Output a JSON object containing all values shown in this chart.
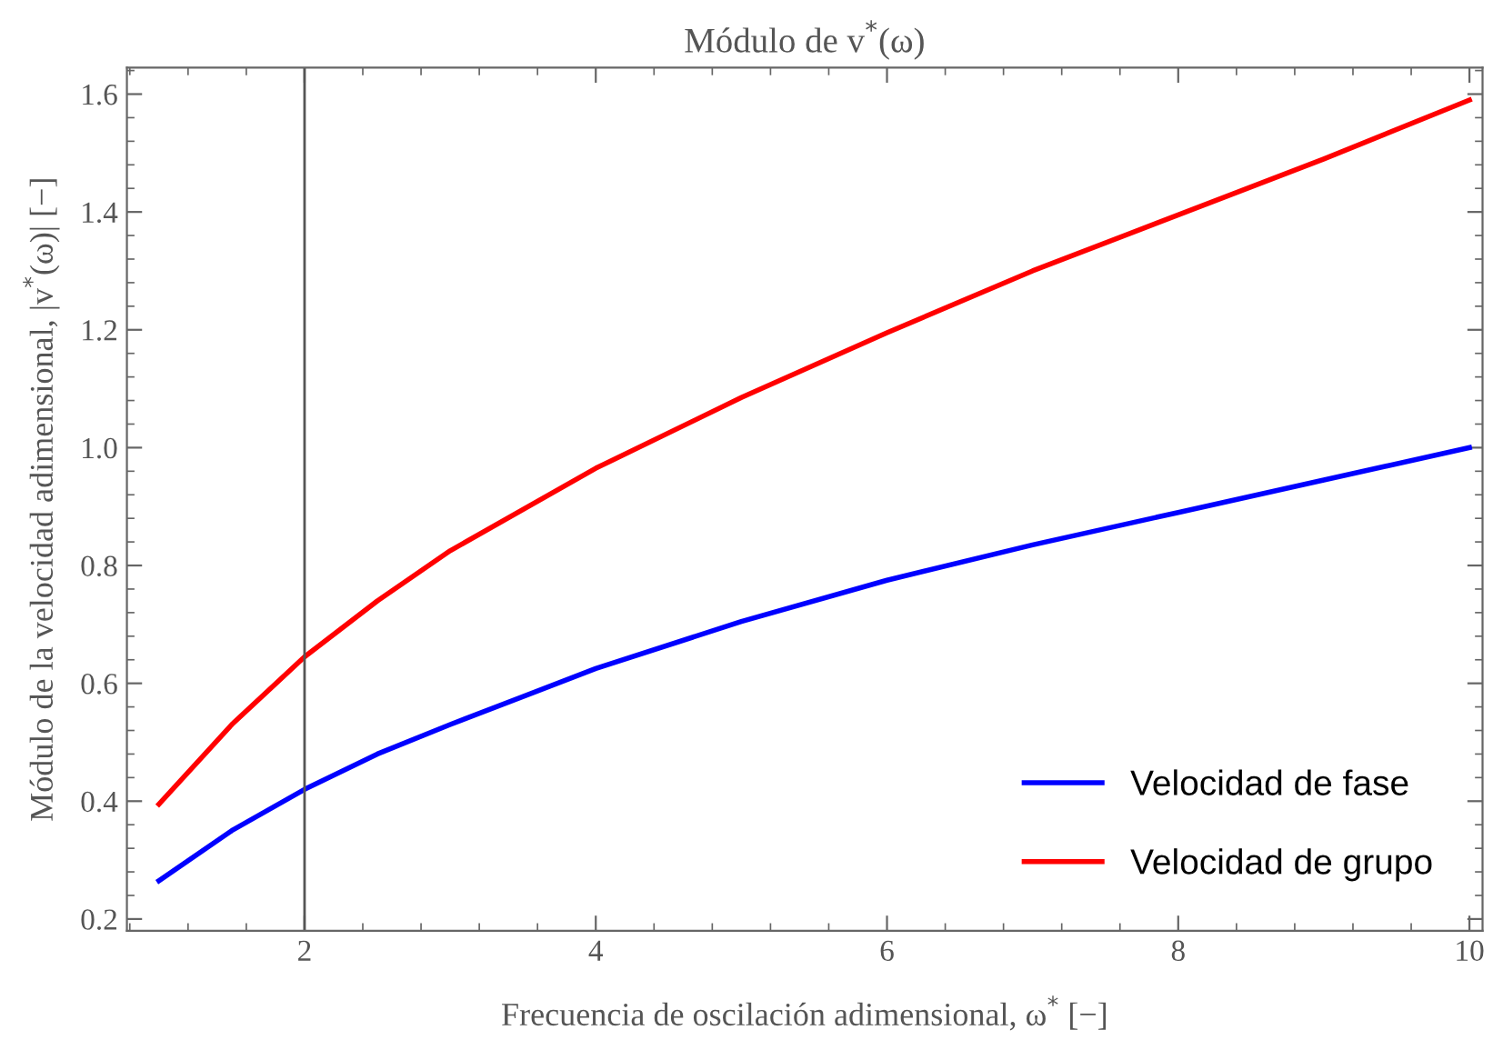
{
  "chart_data": {
    "type": "line",
    "title": "Módulo de v$^{*}$(ω)",
    "xlabel": "Frecuencia de oscilación adimensional, ω$^{*}$ [−]",
    "ylabel": "Módulo de la velocidad adimensional, |v$^{*}$(ω)| [−]",
    "x": [
      1,
      1.5,
      2,
      2.5,
      3,
      4,
      5,
      6,
      7,
      8,
      9,
      10
    ],
    "series": [
      {
        "name": "Velocidad de fase",
        "color": "#0000ff",
        "values": [
          0.265,
          0.35,
          0.42,
          0.48,
          0.53,
          0.625,
          0.705,
          0.775,
          0.835,
          0.89,
          0.945,
          1.0
        ]
      },
      {
        "name": "Velocidad de grupo",
        "color": "#ff0000",
        "values": [
          0.395,
          0.53,
          0.645,
          0.74,
          0.825,
          0.965,
          1.085,
          1.195,
          1.3,
          1.395,
          1.49,
          1.59
        ]
      }
    ],
    "xlim": [
      0.78,
      10.09
    ],
    "ylim": [
      0.18,
      1.645
    ],
    "xticks": [
      2,
      4,
      6,
      8,
      10
    ],
    "yticks": [
      0.2,
      0.4,
      0.6,
      0.8,
      {
        "value": 1,
        "label": "1.0"
      },
      1.2,
      1.4,
      1.6
    ],
    "ref_lines": [
      {
        "axis": "x",
        "value": 2,
        "color": "#555555"
      }
    ],
    "legend": "bottom right",
    "grid": false,
    "marker": "none",
    "line_style": "solid"
  }
}
